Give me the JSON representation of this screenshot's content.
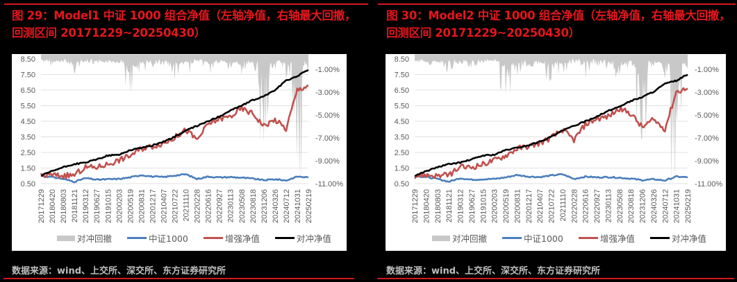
{
  "figures": [
    {
      "id": "fig29",
      "title": "图 29：Model1 中证 1000 组合净值（左轴净值，右轴最大回撤，回测区间 20171229~20250430）",
      "source": "数据来源：wind、上交所、深交所、东方证券研究所",
      "legend": [
        {
          "label": "对冲回撤",
          "type": "area",
          "color": "#c8c8c8"
        },
        {
          "label": "中证1000",
          "type": "line",
          "color": "#4a7ebb"
        },
        {
          "label": "增强净值",
          "type": "line",
          "color": "#c0504d"
        },
        {
          "label": "对冲净值",
          "type": "line",
          "color": "#000000"
        }
      ]
    },
    {
      "id": "fig30",
      "title": "图 30：Model2 中证 1000 组合净值（左轴净值，右轴最大回撤，回测区间 20171229~20250430）",
      "source": "数据来源：wind、上交所、深交所、东方证券研究所",
      "legend": [
        {
          "label": "对冲回撤",
          "type": "area",
          "color": "#c8c8c8"
        },
        {
          "label": "中证1000",
          "type": "line",
          "color": "#4a7ebb"
        },
        {
          "label": "增强净值",
          "type": "line",
          "color": "#c0504d"
        },
        {
          "label": "对冲净值",
          "type": "line",
          "color": "#000000"
        }
      ]
    }
  ],
  "chart_data": [
    {
      "type": "line",
      "title": "图 29：Model1 中证 1000 组合净值（左轴净值，右轴最大回撤，回测区间 20171229~20250430）",
      "xlabel": "",
      "ylabel_left": "净值",
      "ylabel_right": "最大回撤",
      "left_ticks": [
        "0.50",
        "1.50",
        "2.50",
        "3.50",
        "4.50",
        "5.50",
        "6.50",
        "7.50",
        "8.50"
      ],
      "right_ticks": [
        "-11.00%",
        "-9.00%",
        "-7.00%",
        "-5.00%",
        "-3.00%",
        "-1.00%"
      ],
      "ylim_left": [
        0.5,
        8.5
      ],
      "ylim_right": [
        -11.5,
        0.0
      ],
      "grid": true,
      "legend_position": "bottom",
      "x_ticks": [
        "20171229",
        "20180420",
        "20180803",
        "20181121",
        "20190312",
        "20190627",
        "20191015",
        "20200203",
        "20200519",
        "20200831",
        "20201217",
        "20210407",
        "20210722",
        "20211110",
        "20220228",
        "20220616",
        "20220927",
        "20230113",
        "20230508",
        "20230818",
        "20231206",
        "20240326",
        "20240712",
        "20241031",
        "20250219"
      ],
      "series": [
        {
          "name": "中证1000",
          "axis": "left",
          "values": [
            1.0,
            0.92,
            0.8,
            0.62,
            0.85,
            0.75,
            0.78,
            0.8,
            0.9,
            1.05,
            0.95,
            0.92,
            1.02,
            1.1,
            0.8,
            0.95,
            0.9,
            0.92,
            0.88,
            0.82,
            0.72,
            0.78,
            0.7,
            0.95,
            0.9
          ]
        },
        {
          "name": "增强净值",
          "axis": "left",
          "values": [
            1.0,
            1.05,
            1.0,
            1.05,
            1.55,
            1.55,
            1.75,
            2.0,
            2.3,
            2.75,
            2.9,
            3.1,
            3.45,
            3.95,
            3.3,
            4.3,
            4.65,
            4.8,
            5.3,
            5.0,
            4.2,
            4.6,
            4.0,
            6.5,
            6.8
          ]
        },
        {
          "name": "对冲净值",
          "axis": "left",
          "values": [
            1.0,
            1.3,
            1.55,
            1.75,
            1.85,
            2.05,
            2.3,
            2.35,
            2.65,
            2.8,
            2.95,
            3.2,
            3.5,
            3.9,
            4.2,
            4.5,
            4.8,
            5.2,
            5.5,
            5.85,
            6.1,
            6.5,
            7.1,
            7.4,
            7.8
          ]
        },
        {
          "name": "对冲回撤",
          "axis": "right",
          "type": "area",
          "values": [
            -0.2,
            -0.5,
            -0.4,
            -1.3,
            -0.3,
            -0.8,
            -0.4,
            -0.3,
            -3.0,
            -1.5,
            -0.7,
            -0.5,
            -2.0,
            -1.2,
            -0.3,
            -1.5,
            -0.5,
            -0.8,
            -1.5,
            -1.2,
            -7.5,
            -1.0,
            -1.8,
            -11.0,
            -1.0
          ]
        }
      ]
    },
    {
      "type": "line",
      "title": "图 30：Model2 中证 1000 组合净值（左轴净值，右轴最大回撤，回测区间 20171229~20250430）",
      "xlabel": "",
      "ylabel_left": "净值",
      "ylabel_right": "最大回撤",
      "left_ticks": [
        "0.50",
        "1.50",
        "2.50",
        "3.50",
        "4.50",
        "5.50",
        "6.50",
        "7.50",
        "8.50"
      ],
      "right_ticks": [
        "-11.00%",
        "-9.00%",
        "-7.00%",
        "-5.00%",
        "-3.00%",
        "-1.00%"
      ],
      "ylim_left": [
        0.5,
        8.5
      ],
      "ylim_right": [
        -11.5,
        0.0
      ],
      "grid": true,
      "legend_position": "bottom",
      "x_ticks": [
        "20171229",
        "20180420",
        "20180803",
        "20181121",
        "20190312",
        "20190627",
        "20191015",
        "20200203",
        "20200519",
        "20200831",
        "20201217",
        "20210407",
        "20210722",
        "20211110",
        "20220228",
        "20220616",
        "20220927",
        "20230113",
        "20230508",
        "20230818",
        "20231206",
        "20240326",
        "20240712",
        "20241031",
        "20250219"
      ],
      "series": [
        {
          "name": "中证1000",
          "axis": "left",
          "values": [
            1.0,
            0.92,
            0.8,
            0.62,
            0.85,
            0.75,
            0.78,
            0.8,
            0.9,
            1.05,
            0.95,
            0.92,
            1.02,
            1.1,
            0.8,
            0.95,
            0.9,
            0.92,
            0.88,
            0.82,
            0.72,
            0.78,
            0.7,
            0.95,
            0.9
          ]
        },
        {
          "name": "增强净值",
          "axis": "left",
          "values": [
            1.0,
            1.05,
            1.0,
            1.05,
            1.55,
            1.55,
            1.75,
            2.0,
            2.3,
            2.75,
            2.9,
            3.1,
            3.45,
            3.95,
            3.3,
            4.3,
            4.65,
            4.8,
            5.3,
            5.0,
            4.1,
            4.6,
            4.0,
            6.4,
            6.6
          ]
        },
        {
          "name": "对冲净值",
          "axis": "left",
          "values": [
            1.0,
            1.3,
            1.55,
            1.75,
            1.85,
            2.05,
            2.3,
            2.35,
            2.65,
            2.8,
            2.95,
            3.2,
            3.5,
            3.9,
            4.2,
            4.5,
            4.8,
            5.15,
            5.45,
            5.8,
            6.05,
            6.4,
            6.9,
            7.1,
            7.5
          ]
        },
        {
          "name": "对冲回撤",
          "axis": "right",
          "type": "area",
          "values": [
            -0.2,
            -0.5,
            -0.4,
            -1.3,
            -0.3,
            -0.8,
            -0.4,
            -0.3,
            -3.2,
            -1.5,
            -0.7,
            -0.5,
            -2.0,
            -1.2,
            -0.3,
            -1.5,
            -0.5,
            -0.8,
            -1.5,
            -1.2,
            -7.0,
            -1.0,
            -1.8,
            -11.0,
            -1.0
          ]
        }
      ]
    }
  ]
}
